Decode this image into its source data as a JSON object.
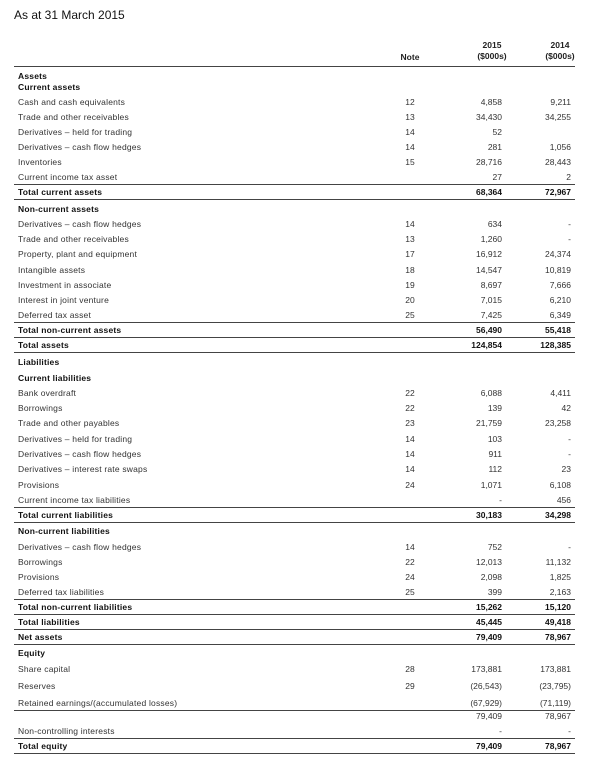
{
  "header": {
    "title": "As at 31 March 2015",
    "note": "Note",
    "current_year": "2015",
    "current_unit": "($000s)",
    "prior_year": "2014",
    "prior_unit": "($000s)"
  },
  "table": {
    "rows": [
      {
        "label": "Assets"
      },
      {
        "label": "Current assets"
      },
      {
        "label": "Cash and cash equivalents",
        "note": "12",
        "current": "4,858",
        "prior": "9,211"
      },
      {
        "label": "Trade and other receivables",
        "note": "13",
        "current": "34,430",
        "prior": "34,255"
      },
      {
        "label": "Derivatives – held for trading",
        "note": "14",
        "current": "52"
      },
      {
        "label": "Derivatives – cash flow hedges",
        "note": "14",
        "current": "281",
        "prior": "1,056"
      },
      {
        "label": "Inventories",
        "note": "15",
        "current": "28,716",
        "prior": "28,443"
      },
      {
        "label": "Current income tax asset",
        "current": "27",
        "prior": "2"
      },
      {
        "label": "Total current assets",
        "current": "68,364",
        "prior": "72,967"
      },
      {
        "label": "Non-current assets"
      },
      {
        "label": "Derivatives – cash flow hedges",
        "note": "14",
        "current": "634",
        "prior": "-"
      },
      {
        "label": "Trade and other receivables",
        "note": "13",
        "current": "1,260",
        "prior": "-"
      },
      {
        "label": "Property, plant and equipment",
        "note": "17",
        "current": "16,912",
        "prior": "24,374"
      },
      {
        "label": "Intangible assets",
        "note": "18",
        "current": "14,547",
        "prior": "10,819"
      },
      {
        "label": "Investment in associate",
        "note": "19",
        "current": "8,697",
        "prior": "7,666"
      },
      {
        "label": "Interest in joint venture",
        "note": "20",
        "current": "7,015",
        "prior": "6,210"
      },
      {
        "label": "Deferred tax asset",
        "note": "25",
        "current": "7,425",
        "prior": "6,349"
      },
      {
        "label": "Total non-current assets",
        "current": "56,490",
        "prior": "55,418"
      },
      {
        "label": "Total assets",
        "current": "124,854",
        "prior": "128,385"
      },
      {
        "label": "Liabilities"
      },
      {
        "label": "Current liabilities"
      },
      {
        "label": "Bank overdraft",
        "note": "22",
        "current": "6,088",
        "prior": "4,411"
      },
      {
        "label": "Borrowings",
        "note": "22",
        "current": "139",
        "prior": "42"
      },
      {
        "label": "Trade and other payables",
        "note": "23",
        "current": "21,759",
        "prior": "23,258"
      },
      {
        "label": "Derivatives – held for trading",
        "note": "14",
        "current": "103",
        "prior": "-"
      },
      {
        "label": "Derivatives – cash flow hedges",
        "note": "14",
        "current": "911",
        "prior": "-"
      },
      {
        "label": "Derivatives – interest rate swaps",
        "note": "14",
        "current": "112",
        "prior": "23"
      },
      {
        "label": "Provisions",
        "note": "24",
        "current": "1,071",
        "prior": "6,108"
      },
      {
        "label": "Current income tax liabilities",
        "current": "-",
        "prior": "456"
      },
      {
        "label": "Total current liabilities",
        "current": "30,183",
        "prior": "34,298"
      },
      {
        "label": "Non-current liabilities"
      },
      {
        "label": "Derivatives – cash flow hedges",
        "note": "14",
        "current": "752",
        "prior": "-"
      },
      {
        "label": "Borrowings",
        "note": "22",
        "current": "12,013",
        "prior": "11,132"
      },
      {
        "label": "Provisions",
        "note": "24",
        "current": "2,098",
        "prior": "1,825"
      },
      {
        "label": "Deferred tax liabilities",
        "note": "25",
        "current": "399",
        "prior": "2,163"
      },
      {
        "label": "Total non-current liabilities",
        "current": "15,262",
        "prior": "15,120"
      },
      {
        "label": "Total liabilities",
        "current": "45,445",
        "prior": "49,418"
      },
      {
        "label": "Net assets",
        "current": "79,409",
        "prior": "78,967"
      },
      {
        "label": "Equity"
      },
      {
        "label": "Share capital",
        "note": "28",
        "current": "173,881",
        "prior": "173,881"
      },
      {
        "label": "Reserves",
        "note": "29",
        "current": "(26,543)",
        "prior": "(23,795)"
      },
      {
        "label": "Retained earnings/(accumulated losses)",
        "current": "(67,929)",
        "prior": "(71,119)"
      },
      {
        "current": "79,409",
        "prior": "78,967"
      },
      {
        "label": "Non-controlling interests",
        "current": "-",
        "prior": "-"
      },
      {
        "label": "Total equity",
        "current": "79,409",
        "prior": "78,967"
      }
    ]
  }
}
